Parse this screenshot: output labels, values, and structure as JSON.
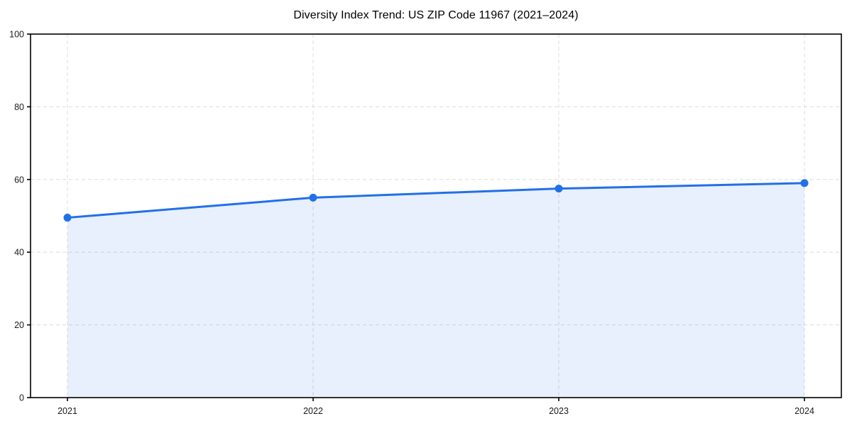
{
  "page": {
    "background_color": "#ffffff"
  },
  "chart_data": {
    "type": "area",
    "title": "Diversity Index Trend: US ZIP Code 11967 (2021–2024)",
    "categories": [
      "2021",
      "2022",
      "2023",
      "2024"
    ],
    "series": [
      {
        "name": "Diversity Index",
        "values": [
          49.5,
          55,
          57.5,
          59
        ]
      }
    ],
    "xlabel": "",
    "ylabel": "",
    "ylim": [
      0,
      100
    ],
    "yticks": [
      0,
      20,
      40,
      60,
      80,
      100
    ],
    "grid": "on",
    "grid_style": "dashed",
    "legend_position": "none",
    "marker": "circle",
    "colors": {
      "line": "#2170e8",
      "marker": "#2170e8",
      "fill": "rgba(33, 112, 232, 0.10)",
      "grid": "#dfdfdf",
      "spine": "#000000",
      "tick_label": "#1a1a1a",
      "title": "#000000"
    }
  }
}
